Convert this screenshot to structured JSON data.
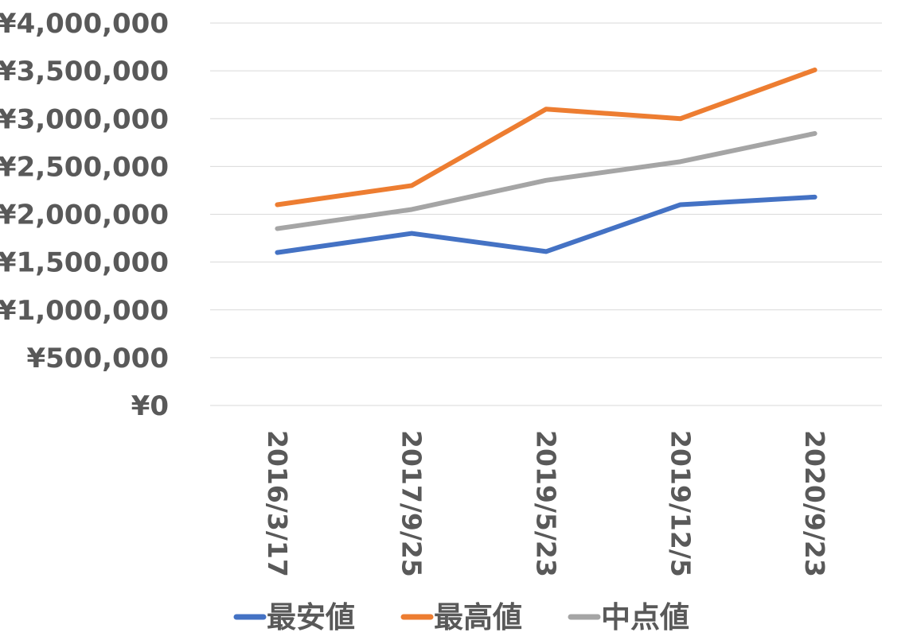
{
  "chart_data": {
    "type": "line",
    "categories": [
      "2016/3/17",
      "2017/9/25",
      "2019/5/23",
      "2019/12/5",
      "2020/9/23"
    ],
    "series": [
      {
        "name": "最安値",
        "color": "#4472c4",
        "values": [
          1600000,
          1800000,
          1610000,
          2100000,
          2180000
        ]
      },
      {
        "name": "最高値",
        "color": "#ed7d31",
        "values": [
          2100000,
          2300000,
          3100000,
          3000000,
          3510000
        ]
      },
      {
        "name": "中点値",
        "color": "#a5a5a5",
        "values": [
          1850000,
          2050000,
          2355000,
          2550000,
          2845000
        ]
      }
    ],
    "y_ticks": [
      "¥0",
      "¥500,000",
      "¥1,000,000",
      "¥1,500,000",
      "¥2,000,000",
      "¥2,500,000",
      "¥3,000,000",
      "¥3,500,000",
      "¥4,000,000"
    ],
    "ylim": [
      0,
      4000000
    ],
    "y_step": 500000,
    "grid": true,
    "legend_position": "bottom",
    "title": "",
    "xlabel": "",
    "ylabel": ""
  }
}
